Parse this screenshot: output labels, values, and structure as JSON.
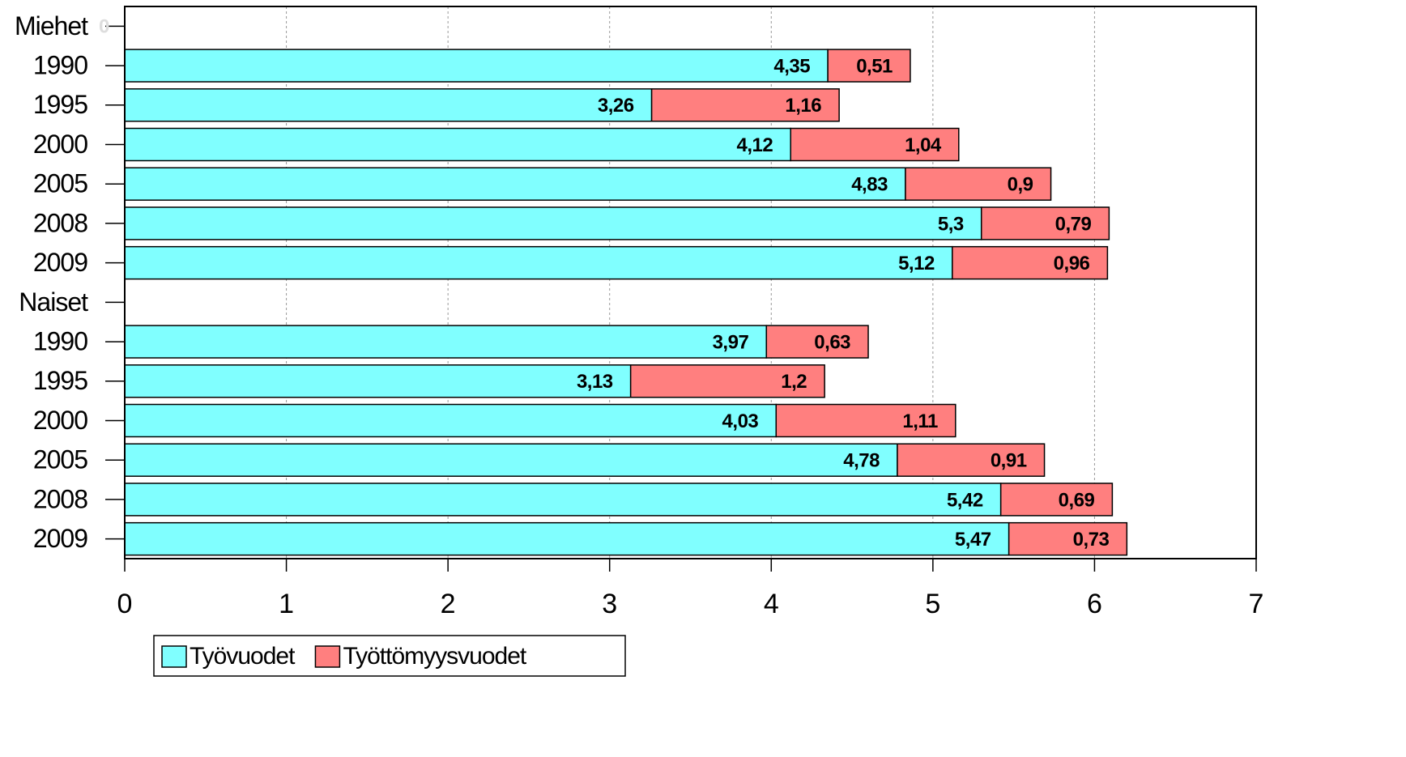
{
  "chart_data": {
    "type": "stacked-bar-horizontal",
    "categories": [
      "Miehet",
      "1990",
      "1995",
      "2000",
      "2005",
      "2008",
      "2009",
      "Naiset",
      "1990",
      "1995",
      "2000",
      "2005",
      "2008",
      "2009"
    ],
    "series": [
      {
        "name": "Työvuodet",
        "color": "#80ffff",
        "values": [
          0,
          4.35,
          3.26,
          4.12,
          4.83,
          5.3,
          5.12,
          null,
          3.97,
          3.13,
          4.03,
          4.78,
          5.42,
          5.47
        ],
        "value_labels": [
          "0",
          "4,35",
          "3,26",
          "4,12",
          "4,83",
          "5,3",
          "5,12",
          null,
          "3,97",
          "3,13",
          "4,03",
          "4,78",
          "5,42",
          "5,47"
        ]
      },
      {
        "name": "Työttömyysvuodet",
        "color": "#ff7f7f",
        "values": [
          null,
          0.51,
          1.16,
          1.04,
          0.9,
          0.79,
          0.96,
          null,
          0.63,
          1.2,
          1.11,
          0.91,
          0.69,
          0.73
        ],
        "value_labels": [
          null,
          "0,51",
          "1,16",
          "1,04",
          "0,9",
          "0,79",
          "0,96",
          null,
          "0,63",
          "1,2",
          "1,11",
          "0,91",
          "0,69",
          "0,73"
        ]
      }
    ],
    "xlim": [
      0,
      7
    ],
    "xticks": [
      0,
      1,
      2,
      3,
      4,
      5,
      6,
      7
    ],
    "grid": true
  }
}
